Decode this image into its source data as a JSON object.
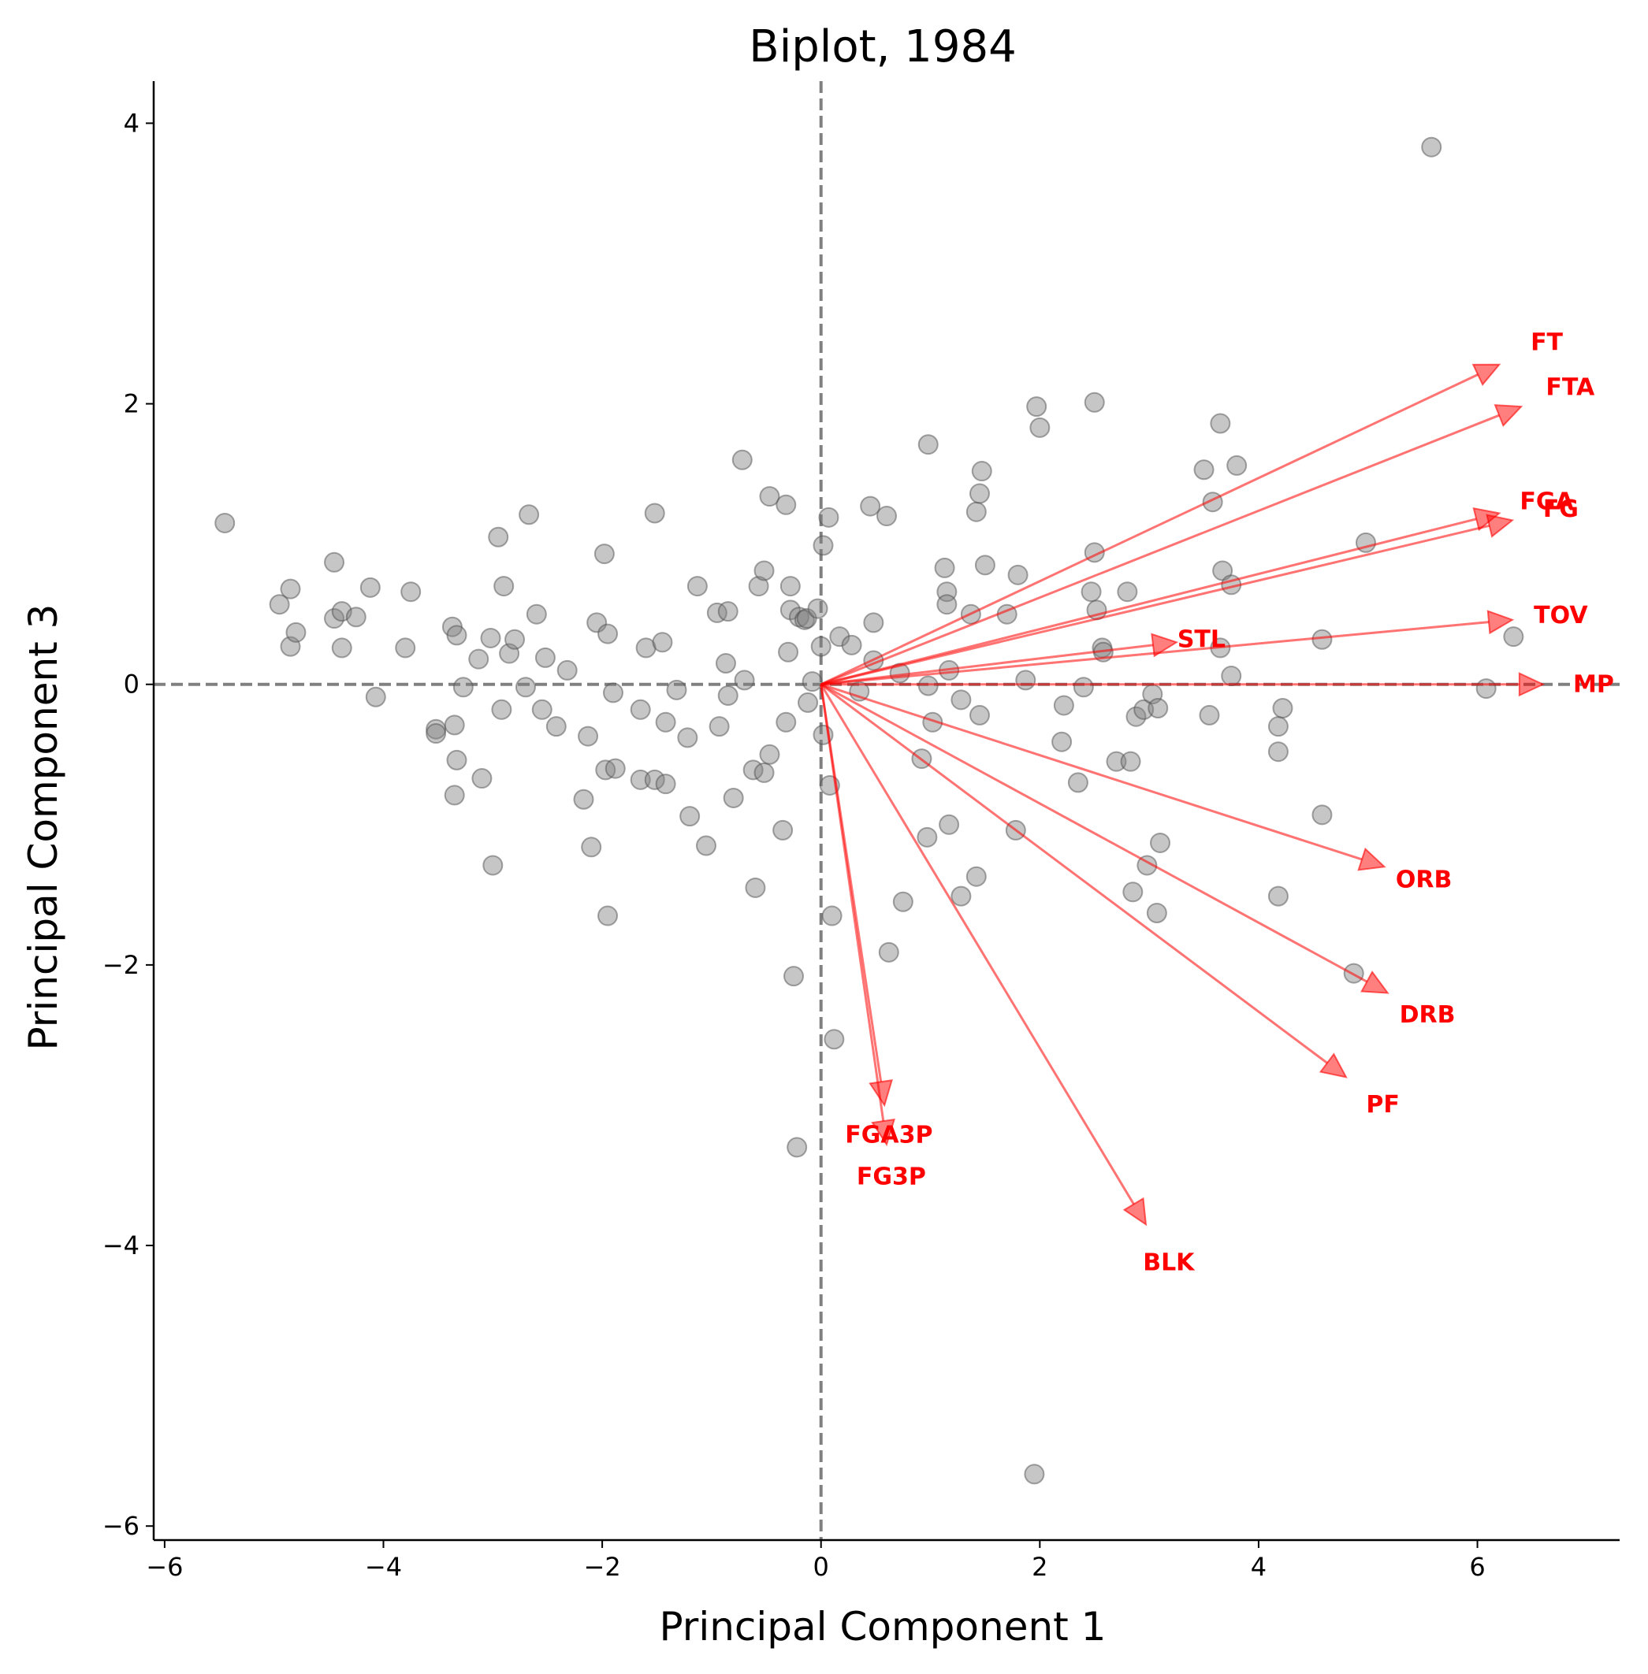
{
  "chart_data": {
    "type": "scatter",
    "title": "Biplot, 1984",
    "xlabel": "Principal Component 1",
    "ylabel": "Principal Component 3",
    "xlim": [
      -6.1,
      7.3
    ],
    "ylim": [
      -6.1,
      4.3
    ],
    "xticks": [
      -6,
      -4,
      -2,
      0,
      2,
      4,
      6
    ],
    "yticks": [
      -6,
      -4,
      -2,
      0,
      2,
      4
    ],
    "grid": false,
    "reference_lines": {
      "x": 0,
      "y": 0,
      "style": "dashed"
    },
    "colors": {
      "points": "#808080",
      "vectors": "#ff0000",
      "reference_lines": "#808080"
    },
    "points": [
      [
        -5.45,
        1.15
      ],
      [
        -4.95,
        0.57
      ],
      [
        -4.85,
        0.68
      ],
      [
        -4.85,
        0.27
      ],
      [
        -4.8,
        0.37
      ],
      [
        -4.45,
        0.87
      ],
      [
        -4.45,
        0.47
      ],
      [
        -4.38,
        0.52
      ],
      [
        -4.38,
        0.26
      ],
      [
        -4.25,
        0.48
      ],
      [
        -4.12,
        0.69
      ],
      [
        -4.07,
        -0.09
      ],
      [
        -3.8,
        0.26
      ],
      [
        -3.75,
        0.66
      ],
      [
        -3.52,
        -0.32
      ],
      [
        -3.52,
        -0.35
      ],
      [
        -3.37,
        0.41
      ],
      [
        -3.35,
        -0.29
      ],
      [
        -3.33,
        0.35
      ],
      [
        -3.33,
        -0.54
      ],
      [
        -3.35,
        -0.79
      ],
      [
        -3.27,
        -0.02
      ],
      [
        -3.13,
        0.18
      ],
      [
        -3.1,
        -0.67
      ],
      [
        -3.02,
        0.33
      ],
      [
        -3.0,
        -1.29
      ],
      [
        -2.95,
        1.05
      ],
      [
        -2.92,
        -0.18
      ],
      [
        -2.9,
        0.7
      ],
      [
        -2.85,
        0.22
      ],
      [
        -2.8,
        0.32
      ],
      [
        -2.7,
        -0.02
      ],
      [
        -2.67,
        1.21
      ],
      [
        -2.6,
        0.5
      ],
      [
        -2.55,
        -0.18
      ],
      [
        -2.52,
        0.19
      ],
      [
        -2.42,
        -0.3
      ],
      [
        -2.32,
        0.1
      ],
      [
        -2.17,
        -0.82
      ],
      [
        -2.13,
        -0.37
      ],
      [
        -2.1,
        -1.16
      ],
      [
        -2.05,
        0.44
      ],
      [
        -1.98,
        0.93
      ],
      [
        -1.97,
        -0.61
      ],
      [
        -1.95,
        0.36
      ],
      [
        -1.95,
        -1.65
      ],
      [
        -1.9,
        -0.06
      ],
      [
        -1.88,
        -0.6
      ],
      [
        -1.65,
        -0.18
      ],
      [
        -1.65,
        -0.68
      ],
      [
        -1.6,
        0.26
      ],
      [
        -1.52,
        -0.68
      ],
      [
        -1.52,
        1.22
      ],
      [
        -1.45,
        0.3
      ],
      [
        -1.42,
        -0.27
      ],
      [
        -1.42,
        -0.71
      ],
      [
        -1.32,
        -0.04
      ],
      [
        -1.22,
        -0.38
      ],
      [
        -1.2,
        -0.94
      ],
      [
        -1.13,
        0.7
      ],
      [
        -1.05,
        -1.15
      ],
      [
        -0.95,
        0.51
      ],
      [
        -0.93,
        -0.3
      ],
      [
        -0.87,
        0.15
      ],
      [
        -0.85,
        -0.08
      ],
      [
        -0.85,
        0.52
      ],
      [
        -0.8,
        -0.81
      ],
      [
        -0.72,
        1.6
      ],
      [
        -0.7,
        0.03
      ],
      [
        -0.6,
        -1.45
      ],
      [
        -0.62,
        -0.61
      ],
      [
        -0.57,
        0.7
      ],
      [
        -0.52,
        0.81
      ],
      [
        -0.52,
        -0.63
      ],
      [
        -0.47,
        -0.5
      ],
      [
        -0.47,
        1.34
      ],
      [
        -0.35,
        -1.04
      ],
      [
        -0.32,
        1.28
      ],
      [
        -0.32,
        -0.27
      ],
      [
        -0.3,
        0.23
      ],
      [
        -0.28,
        0.7
      ],
      [
        -0.28,
        0.53
      ],
      [
        -0.25,
        -2.08
      ],
      [
        -0.22,
        -3.3
      ],
      [
        -0.2,
        0.48
      ],
      [
        -0.15,
        0.46
      ],
      [
        -0.13,
        0.47
      ],
      [
        -0.12,
        -0.13
      ],
      [
        -0.08,
        0.02
      ],
      [
        -0.03,
        0.54
      ],
      [
        -0.0,
        0.27
      ],
      [
        0.02,
        0.99
      ],
      [
        0.02,
        -0.36
      ],
      [
        0.07,
        1.19
      ],
      [
        0.08,
        -0.72
      ],
      [
        0.1,
        -1.65
      ],
      [
        0.12,
        -2.53
      ],
      [
        0.17,
        0.34
      ],
      [
        0.28,
        0.28
      ],
      [
        0.35,
        -0.05
      ],
      [
        0.45,
        1.27
      ],
      [
        0.48,
        0.17
      ],
      [
        0.48,
        0.44
      ],
      [
        0.6,
        1.2
      ],
      [
        0.62,
        -1.91
      ],
      [
        0.72,
        0.08
      ],
      [
        0.75,
        -1.55
      ],
      [
        0.92,
        -0.53
      ],
      [
        0.97,
        -1.09
      ],
      [
        0.98,
        1.71
      ],
      [
        0.98,
        -0.01
      ],
      [
        1.02,
        -0.27
      ],
      [
        1.13,
        0.83
      ],
      [
        1.15,
        0.66
      ],
      [
        1.15,
        0.57
      ],
      [
        1.17,
        -1.0
      ],
      [
        1.17,
        0.1
      ],
      [
        1.28,
        -1.51
      ],
      [
        1.28,
        -0.11
      ],
      [
        1.37,
        0.5
      ],
      [
        1.42,
        -1.37
      ],
      [
        1.42,
        1.23
      ],
      [
        1.45,
        1.36
      ],
      [
        1.45,
        -0.22
      ],
      [
        1.47,
        1.52
      ],
      [
        1.5,
        0.85
      ],
      [
        1.7,
        0.5
      ],
      [
        1.78,
        -1.04
      ],
      [
        1.8,
        0.78
      ],
      [
        1.87,
        0.03
      ],
      [
        1.95,
        -5.63
      ],
      [
        1.97,
        1.98
      ],
      [
        2.0,
        1.83
      ],
      [
        2.2,
        -0.41
      ],
      [
        2.22,
        -0.15
      ],
      [
        2.35,
        -0.7
      ],
      [
        2.4,
        -0.02
      ],
      [
        2.47,
        0.66
      ],
      [
        2.5,
        2.01
      ],
      [
        2.5,
        0.94
      ],
      [
        2.52,
        0.53
      ],
      [
        2.57,
        0.26
      ],
      [
        2.58,
        0.23
      ],
      [
        2.7,
        -0.55
      ],
      [
        2.8,
        0.66
      ],
      [
        2.83,
        -0.55
      ],
      [
        2.85,
        -1.48
      ],
      [
        2.88,
        -0.23
      ],
      [
        2.95,
        -0.18
      ],
      [
        2.98,
        -1.29
      ],
      [
        3.03,
        -0.07
      ],
      [
        3.07,
        -1.63
      ],
      [
        3.08,
        -0.17
      ],
      [
        3.1,
        -1.13
      ],
      [
        3.5,
        1.53
      ],
      [
        3.55,
        -0.22
      ],
      [
        3.58,
        1.3
      ],
      [
        3.65,
        1.86
      ],
      [
        3.65,
        0.26
      ],
      [
        3.67,
        0.81
      ],
      [
        3.75,
        0.06
      ],
      [
        3.75,
        0.71
      ],
      [
        3.8,
        1.56
      ],
      [
        4.18,
        -0.3
      ],
      [
        4.18,
        -0.48
      ],
      [
        4.18,
        -1.51
      ],
      [
        4.22,
        -0.17
      ],
      [
        4.58,
        0.32
      ],
      [
        4.58,
        -0.93
      ],
      [
        4.87,
        -2.06
      ],
      [
        4.98,
        1.01
      ],
      [
        5.58,
        3.83
      ],
      [
        6.08,
        -0.03
      ],
      [
        6.33,
        0.34
      ]
    ],
    "loadings": [
      {
        "name": "FT",
        "x": 6.2,
        "y": 2.28
      },
      {
        "name": "FTA",
        "x": 6.4,
        "y": 1.98
      },
      {
        "name": "FGA",
        "x": 6.2,
        "y": 1.22
      },
      {
        "name": "FG",
        "x": 6.32,
        "y": 1.17
      },
      {
        "name": "TOV",
        "x": 6.32,
        "y": 0.46
      },
      {
        "name": "STL",
        "x": 3.25,
        "y": 0.3
      },
      {
        "name": "MP",
        "x": 6.6,
        "y": 0.0
      },
      {
        "name": "ORB",
        "x": 5.15,
        "y": -1.3
      },
      {
        "name": "DRB",
        "x": 5.18,
        "y": -2.2
      },
      {
        "name": "PF",
        "x": 4.8,
        "y": -2.8
      },
      {
        "name": "BLK",
        "x": 2.97,
        "y": -3.85
      },
      {
        "name": "FGA3P",
        "x": 0.58,
        "y": -3.0
      },
      {
        "name": "FG3P",
        "x": 0.6,
        "y": -3.28
      }
    ]
  }
}
